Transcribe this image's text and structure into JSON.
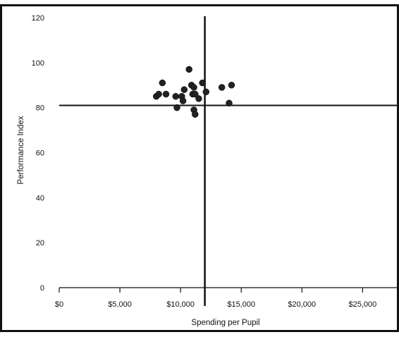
{
  "chart_data": {
    "type": "scatter",
    "title": "",
    "xlabel": "Spending per Pupil",
    "ylabel": "Performance Index",
    "xlim": [
      0,
      28000
    ],
    "ylim": [
      0,
      120
    ],
    "xticks": [
      0,
      5000,
      10000,
      15000,
      20000,
      25000
    ],
    "xtick_labels": [
      "$0",
      "$5,000",
      "$10,000",
      "$15,000",
      "$20,000",
      "$25,000"
    ],
    "yticks": [
      0,
      20,
      40,
      60,
      80,
      100,
      120
    ],
    "ytick_labels": [
      "0",
      "20",
      "40",
      "60",
      "80",
      "100",
      "120"
    ],
    "grid": false,
    "reference_lines": {
      "x": 12000,
      "y": 81
    },
    "point_color": "#222222",
    "points": [
      {
        "x": 8000,
        "y": 85
      },
      {
        "x": 8200,
        "y": 86
      },
      {
        "x": 8500,
        "y": 91
      },
      {
        "x": 8800,
        "y": 86
      },
      {
        "x": 9600,
        "y": 85
      },
      {
        "x": 9700,
        "y": 80
      },
      {
        "x": 10100,
        "y": 85
      },
      {
        "x": 10200,
        "y": 83
      },
      {
        "x": 10300,
        "y": 88
      },
      {
        "x": 10700,
        "y": 97
      },
      {
        "x": 10900,
        "y": 90
      },
      {
        "x": 11000,
        "y": 86
      },
      {
        "x": 11100,
        "y": 89
      },
      {
        "x": 11200,
        "y": 86
      },
      {
        "x": 11100,
        "y": 79
      },
      {
        "x": 11200,
        "y": 77
      },
      {
        "x": 11500,
        "y": 84
      },
      {
        "x": 11800,
        "y": 91
      },
      {
        "x": 12100,
        "y": 87
      },
      {
        "x": 13400,
        "y": 89
      },
      {
        "x": 14000,
        "y": 82
      },
      {
        "x": 14200,
        "y": 90
      }
    ]
  }
}
